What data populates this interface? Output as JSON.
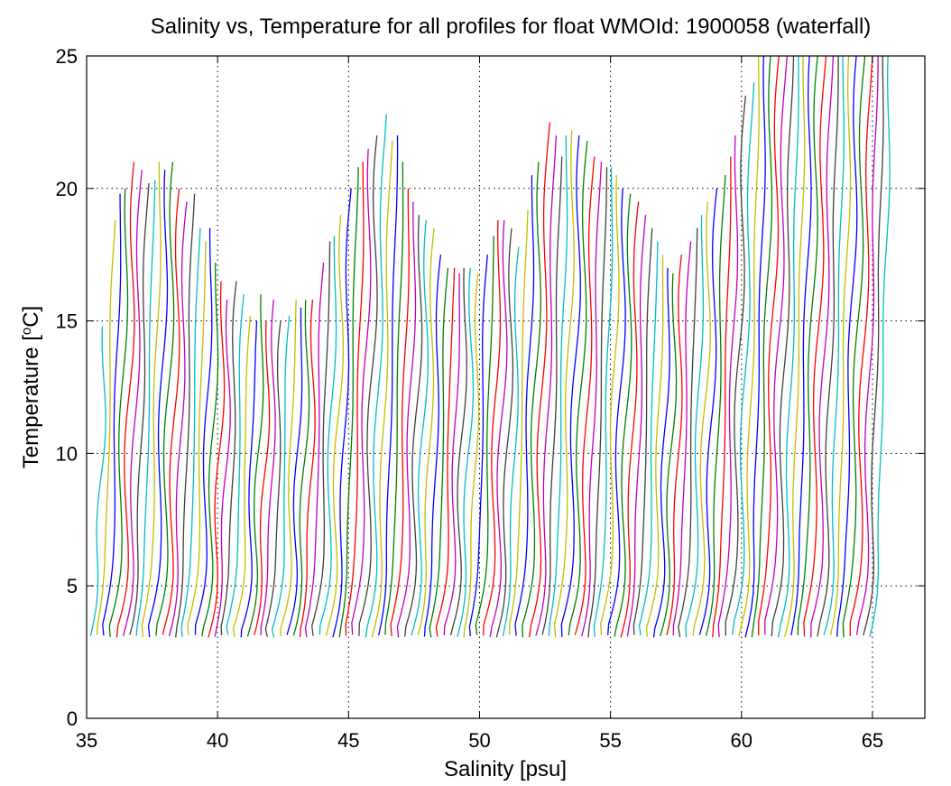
{
  "chart_data": {
    "type": "line",
    "title": "Salinity vs, Temperature for all profiles for float WMOId: 1900058 (waterfall)",
    "xlabel": "Salinity [psu]",
    "ylabel_main": "Temperature [",
    "ylabel_sup": "o",
    "ylabel_end": "C]",
    "xlim": [
      35,
      67
    ],
    "ylim": [
      0,
      25
    ],
    "xticks": [
      35,
      40,
      45,
      50,
      55,
      60,
      65
    ],
    "yticks": [
      0,
      5,
      10,
      15,
      20,
      25
    ],
    "grid": true,
    "series_colors": [
      "#00bfbf",
      "#bfbf00",
      "#0000ff",
      "#008000",
      "#ff0000",
      "#bf00bf",
      "#404040"
    ],
    "profile_spacing_psu": 0.25,
    "first_profile_bottom_salinity": 35.4,
    "profile_count": 120,
    "profile_top_temperatures": [
      14.8,
      18.8,
      19.8,
      20.0,
      21.0,
      20.7,
      20.2,
      20.3,
      21.0,
      20.7,
      21.0,
      20.0,
      19.5,
      19.8,
      18.5,
      18.0,
      18.5,
      17.2,
      16.5,
      15.8,
      16.5,
      16.0,
      15.2,
      15.0,
      16.0,
      15.0,
      15.8,
      15.0,
      15.2,
      15.8,
      15.5,
      15.8,
      15.8,
      17.2,
      18.0,
      18.2,
      19.0,
      20.0,
      20.8,
      21.0,
      21.5,
      22.0,
      22.8,
      21.8,
      22.0,
      21.0,
      20.0,
      19.5,
      19.0,
      18.8,
      18.5,
      17.5,
      17.0,
      17.0,
      16.8,
      17.0,
      17.0,
      16.8,
      17.5,
      18.2,
      18.8,
      18.8,
      18.5,
      17.8,
      19.2,
      20.5,
      21.0,
      22.5,
      22.0,
      21.2,
      22.0,
      22.2,
      22.0,
      21.8,
      21.2,
      21.0,
      20.8,
      20.8,
      20.5,
      20.0,
      19.8,
      19.5,
      19.0,
      18.5,
      18.0,
      17.5,
      17.0,
      16.8,
      17.5,
      18.0,
      18.5,
      19.0,
      19.5,
      20.0,
      20.5,
      21.2,
      22.0,
      23.5,
      24.0,
      25.0,
      25.0,
      25.0,
      25.0,
      25.0,
      25.0,
      25.0,
      25.0,
      25.0,
      25.0,
      25.0,
      25.0,
      25.0,
      25.0,
      25.0,
      25.0,
      25.0,
      25.0,
      25.0,
      25.0,
      25.0
    ]
  }
}
